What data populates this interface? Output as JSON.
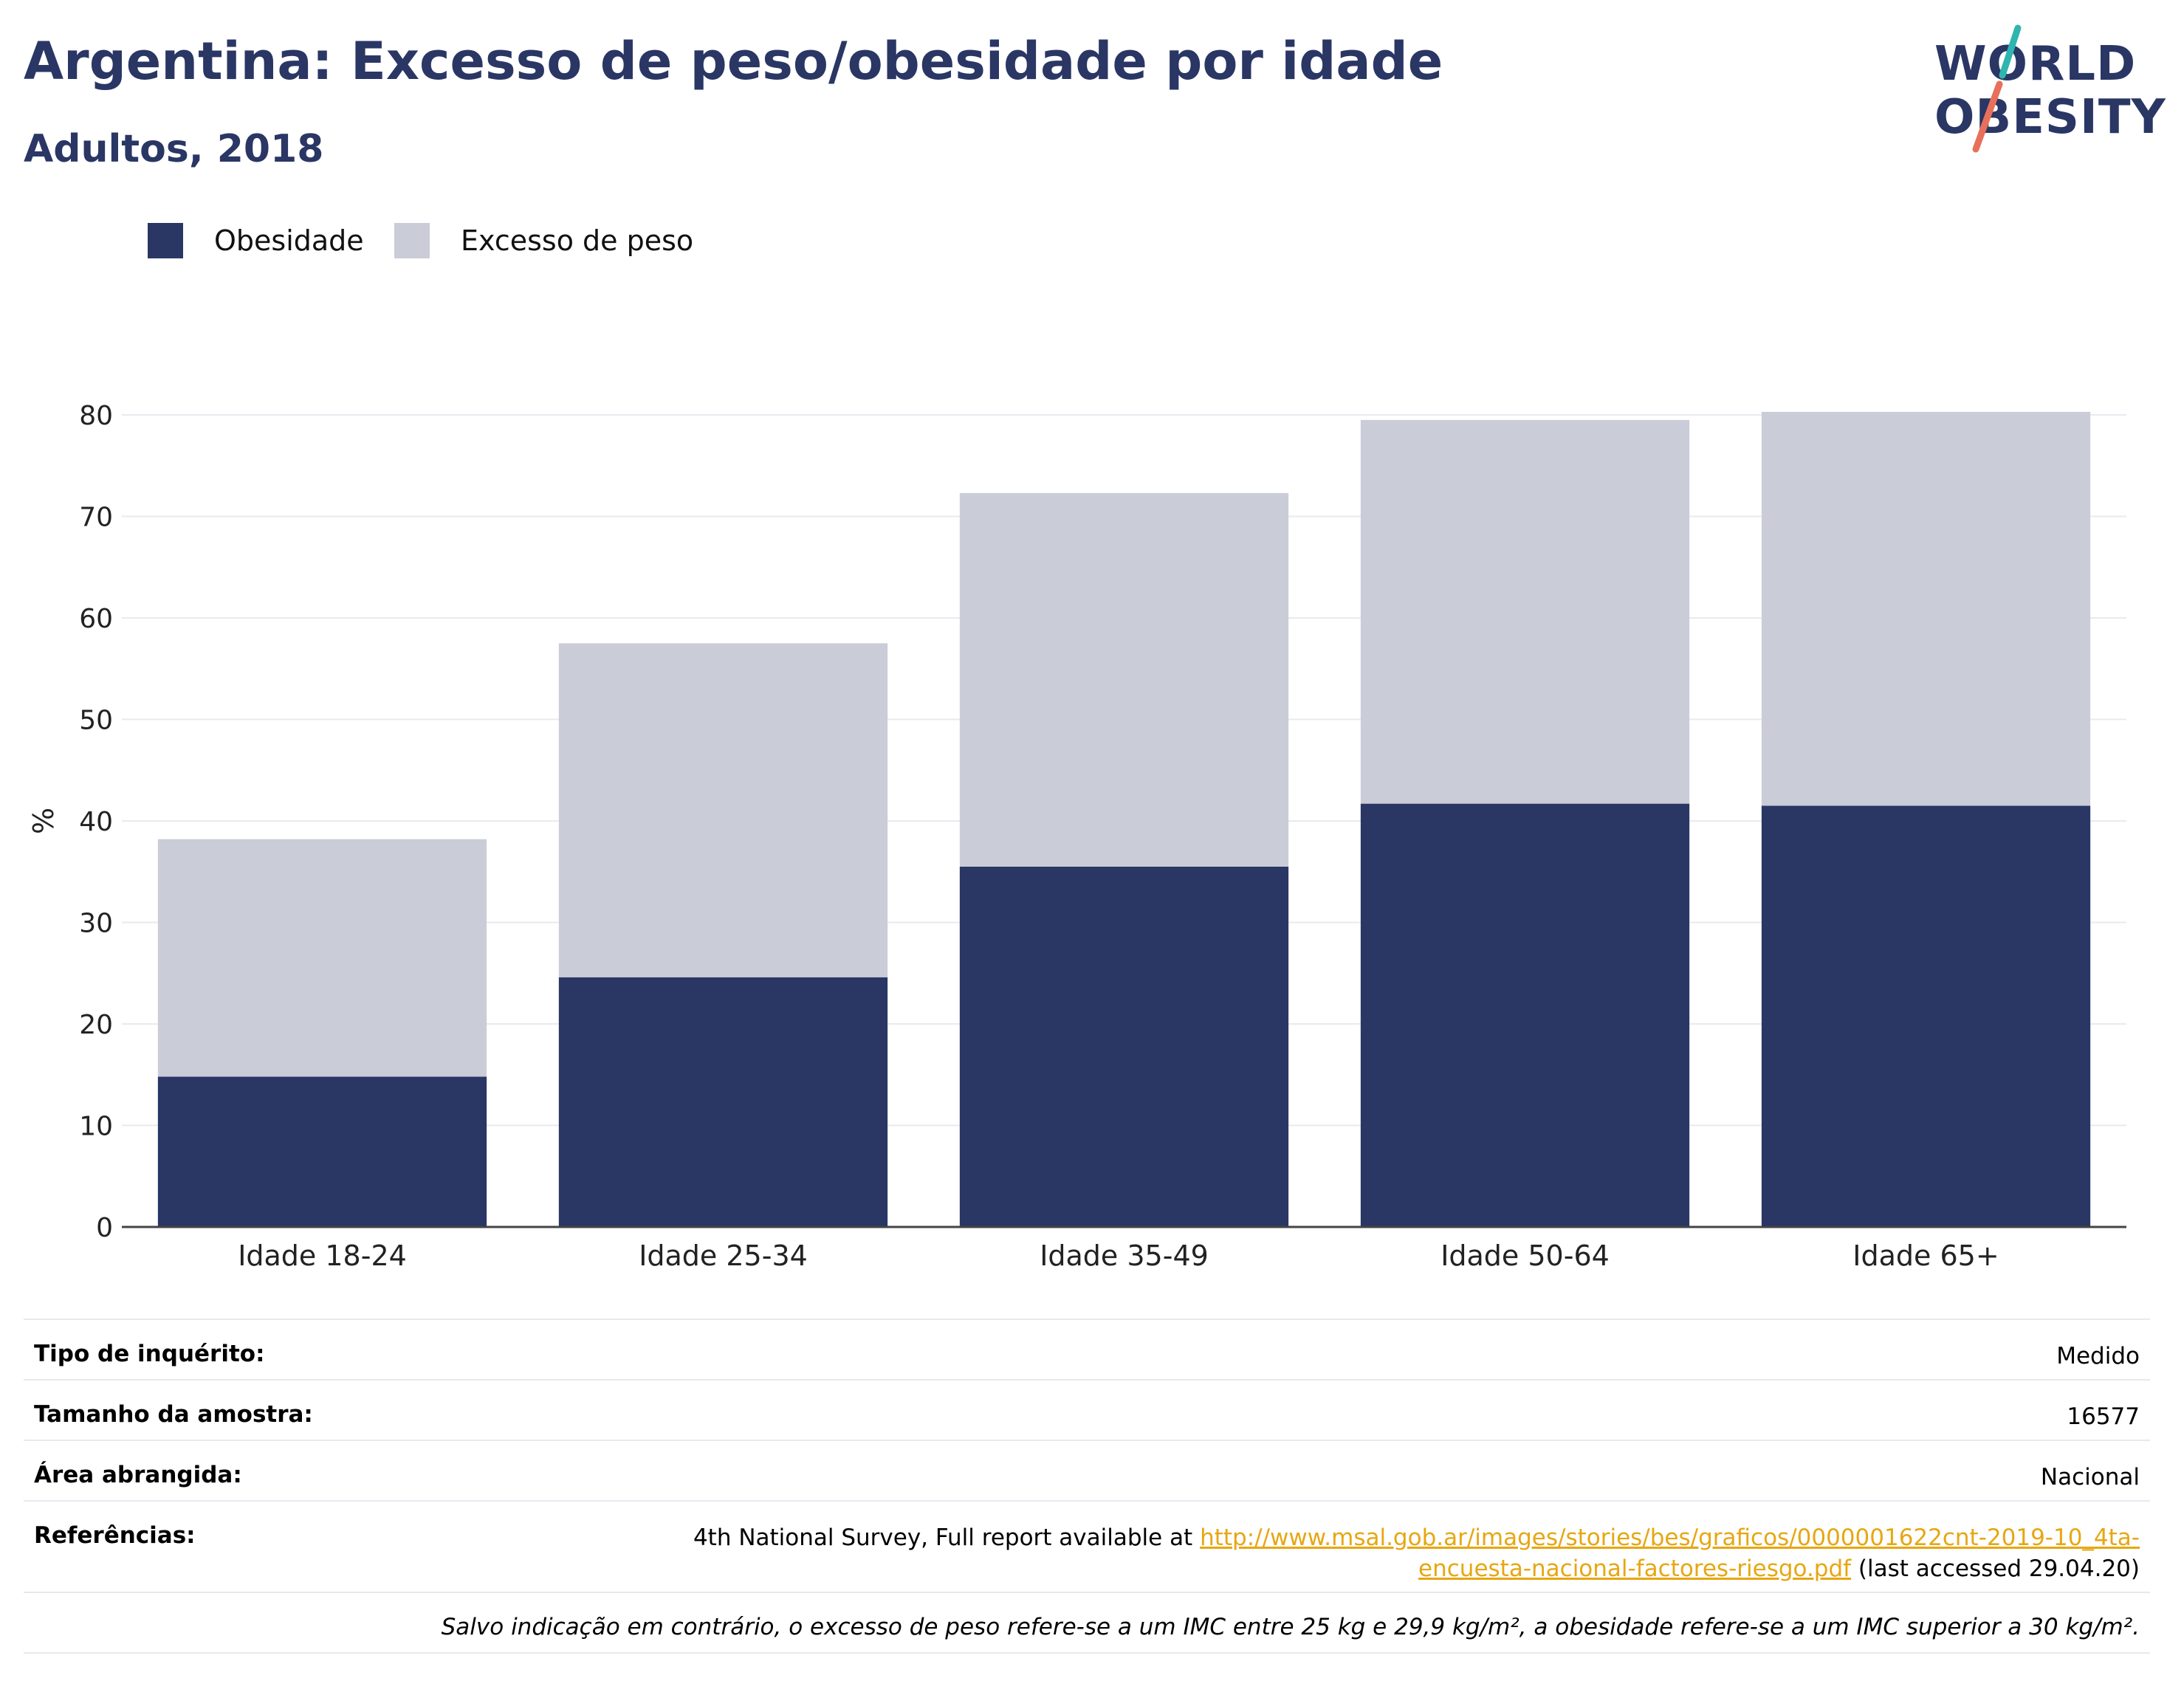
{
  "header": {
    "title": "Argentina: Excesso de peso/obesidade por idade",
    "subtitle": "Adultos, 2018"
  },
  "logo": {
    "line1": "WORLD",
    "line2": "OBESITY",
    "colors": {
      "text": "#2a3664",
      "slash_top": "#2fb5b0",
      "slash_bottom": "#e8705a"
    }
  },
  "chart_data": {
    "type": "bar",
    "stacked": true,
    "categories": [
      "Idade 18-24",
      "Idade 25-34",
      "Idade 35-49",
      "Idade 50-64",
      "Idade 65+"
    ],
    "series": [
      {
        "name": "Obesidade",
        "color": "#2a3664",
        "values": [
          14.8,
          24.6,
          35.5,
          41.7,
          41.5
        ]
      },
      {
        "name": "Excesso de peso",
        "color": "#caccd8",
        "values": [
          23.4,
          32.9,
          36.8,
          37.8,
          38.8
        ]
      }
    ],
    "title": "",
    "xlabel": "",
    "ylabel": "%",
    "ylim": [
      0,
      80
    ],
    "yticks": [
      0,
      10,
      20,
      30,
      40,
      50,
      60,
      70,
      80
    ],
    "grid": true,
    "legend_position": "top-left"
  },
  "info": {
    "survey_type_label": "Tipo de inquérito:",
    "survey_type_value": "Medido",
    "sample_size_label": "Tamanho da amostra:",
    "sample_size_value": "16577",
    "area_label": "Área abrangida:",
    "area_value": "Nacional",
    "references_label": "Referências:",
    "references_prefix": "4th National Survey, Full report available at ",
    "references_link_line1": "http://www.msal.gob.ar/images/stories/bes/graficos/0000001622cnt-2019-10_4ta-",
    "references_link_line2": "encuesta-nacional-factores-riesgo.pdf",
    "references_suffix": " (last accessed 29.04.20)",
    "footnote": "Salvo indicação em contrário, o excesso de peso refere-se a um IMC entre 25 kg e 29,9 kg/m², a obesidade refere-se a um IMC superior a 30 kg/m²."
  },
  "colors": {
    "link": "#e6a712",
    "heading": "#2a3664"
  }
}
